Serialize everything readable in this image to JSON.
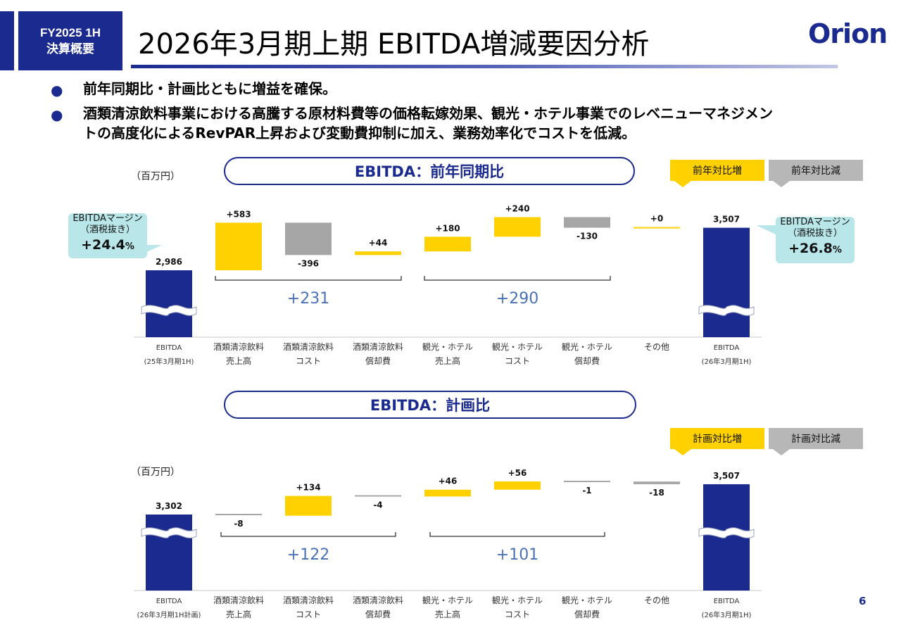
{
  "header": {
    "badge_line1": "FY2025 1H",
    "badge_line2": "決算概要",
    "title": "2026年3月期上期 EBITDA増減要因分析",
    "logo": "Orion"
  },
  "bullets": [
    "前年同期比・計画比ともに増益を確保。",
    "酒類清涼飲料事業における高騰する原材料費等の価格転嫁効果、観光・ホテル事業でのレベニューマネジメン",
    "トの高度化によるRevPAR上昇および変動費抑制に加え、業務効率化でコストを低減。"
  ],
  "colors": {
    "navy": "#1a2a8f",
    "increase": "#ffd100",
    "decrease": "#a6a6a6",
    "teal_box": "#b9e6e8",
    "group_label": "#4a72b8"
  },
  "chart_data": [
    {
      "type": "bar",
      "title": "EBITDA：前年同期比",
      "unit": "（百万円）",
      "legend": [
        "前年対比増",
        "前年対比減"
      ],
      "categories": [
        [
          "EBITDA",
          "(25年3月期1H)"
        ],
        [
          "酒類清涼飲料",
          "売上高"
        ],
        [
          "酒類清涼飲料",
          "コスト"
        ],
        [
          "酒類清涼飲料",
          "償却費"
        ],
        [
          "観光・ホテル",
          "売上高"
        ],
        [
          "観光・ホテル",
          "コスト"
        ],
        [
          "観光・ホテル",
          "償却費"
        ],
        [
          "その他",
          ""
        ],
        [
          "EBITDA",
          "(26年3月期1H)"
        ]
      ],
      "kinds": [
        "total",
        "delta",
        "delta",
        "delta",
        "delta",
        "delta",
        "delta",
        "delta",
        "total"
      ],
      "values": [
        2986,
        583,
        -396,
        44,
        180,
        240,
        -130,
        0,
        3507
      ],
      "labels": [
        "2,986",
        "+583",
        "-396",
        "+44",
        "+180",
        "+240",
        "-130",
        "+0",
        "3,507"
      ],
      "groups": [
        {
          "label": "+231",
          "from": 1,
          "to": 3
        },
        {
          "label": "+290",
          "from": 4,
          "to": 6
        }
      ],
      "margin_start": {
        "line1": "EBITDAマージン",
        "line2": "（酒税抜き）",
        "value": "+24.4",
        "suffix": "%"
      },
      "margin_end": {
        "line1": "EBITDAマージン",
        "line2": "（酒税抜き）",
        "value": "+26.8",
        "suffix": "%"
      }
    },
    {
      "type": "bar",
      "title": "EBITDA：計画比",
      "unit": "（百万円）",
      "legend": [
        "計画対比増",
        "計画対比減"
      ],
      "categories": [
        [
          "EBITDA",
          "(26年3月期1H計画)"
        ],
        [
          "酒類清涼飲料",
          "売上高"
        ],
        [
          "酒類清涼飲料",
          "コスト"
        ],
        [
          "酒類清涼飲料",
          "償却費"
        ],
        [
          "観光・ホテル",
          "売上高"
        ],
        [
          "観光・ホテル",
          "コスト"
        ],
        [
          "観光・ホテル",
          "償却費"
        ],
        [
          "その他",
          ""
        ],
        [
          "EBITDA",
          "(26年3月期1H)"
        ]
      ],
      "kinds": [
        "total",
        "delta",
        "delta",
        "delta",
        "delta",
        "delta",
        "delta",
        "delta",
        "total"
      ],
      "values": [
        3302,
        -8,
        134,
        -4,
        46,
        56,
        -1,
        -18,
        3507
      ],
      "labels": [
        "3,302",
        "-8",
        "+134",
        "-4",
        "+46",
        "+56",
        "-1",
        "-18",
        "3,507"
      ],
      "groups": [
        {
          "label": "+122",
          "from": 1,
          "to": 3
        },
        {
          "label": "+101",
          "from": 4,
          "to": 6
        }
      ]
    }
  ],
  "page_number": "6"
}
